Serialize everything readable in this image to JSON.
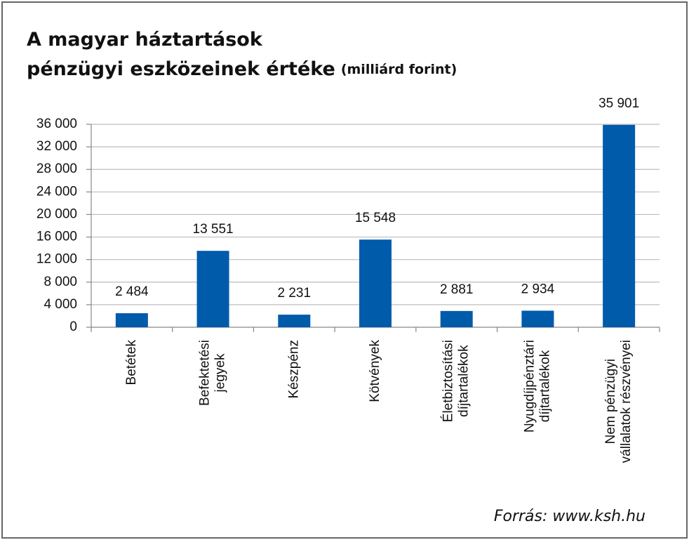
{
  "chart_data": {
    "type": "bar",
    "title": "A magyar háztartások pénzügyi eszközeinek értéke",
    "subtitle": "(milliárd forint)",
    "source": "Forrás: www.ksh.hu",
    "categories": [
      [
        "Betétek"
      ],
      [
        "Befektetési",
        "jegyek"
      ],
      [
        "Készpénz"
      ],
      [
        "Kötvények"
      ],
      [
        "Életbiztosítási",
        "díjtartalékok"
      ],
      [
        "Nyugdíjpénztári",
        "díjtartalékok"
      ],
      [
        "Nem pénzügyi",
        "vállalatok részvényei"
      ]
    ],
    "values": [
      2484,
      13551,
      2231,
      15548,
      2881,
      2934,
      35901
    ],
    "value_labels": [
      "2 484",
      "13 551",
      "2 231",
      "15 548",
      "2 881",
      "2 934",
      "35 901"
    ],
    "color": "#005bab",
    "ylim": [
      0,
      36000
    ],
    "yticks": [
      0,
      {
        "value": 4000,
        "label": "4 000"
      },
      {
        "value": 8000,
        "label": "8 000"
      },
      {
        "value": 12000,
        "label": "12 000"
      },
      {
        "value": 16000,
        "label": "16 000"
      },
      {
        "value": 20000,
        "label": "20 000"
      },
      {
        "value": 24000,
        "label": "24 000"
      },
      {
        "value": 28000,
        "label": "28 000"
      },
      {
        "value": 32000,
        "label": "32 000"
      },
      {
        "value": 36000,
        "label": "36 000"
      }
    ],
    "grid": true
  }
}
